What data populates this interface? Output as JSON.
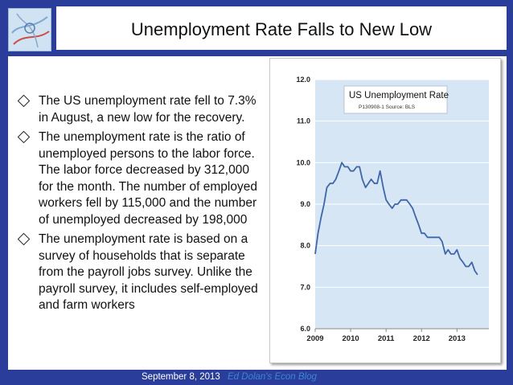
{
  "slide": {
    "title": "Unemployment Rate Falls to New Low",
    "bullets": [
      "The US unemployment rate fell to 7.3% in August, a new low for the recovery.",
      "The unemployment rate is the ratio of unemployed persons to the labor force. The labor force decreased by 312,000 for the month. The number of employed workers fell by 115,000 and the number of unemployed decreased by 198,000",
      "The unemployment rate is based on a survey of households that is separate from the payroll jobs survey. Unlike the payroll survey, it includes self-employed and farm workers"
    ],
    "footer": {
      "date": "September 8, 2013",
      "source": "Ed Dolan's Econ Blog"
    }
  },
  "chart_data": {
    "type": "line",
    "title": "US Unemployment Rate",
    "subtitle": "P130908-1 Source: BLS",
    "xlabel": "",
    "ylabel": "",
    "xlim": [
      2009,
      2013.9
    ],
    "ylim": [
      6.0,
      12.0
    ],
    "x_ticks": [
      "2009",
      "2010",
      "2011",
      "2012",
      "2013"
    ],
    "y_ticks": [
      "6.0",
      "7.0",
      "8.0",
      "9.0",
      "10.0",
      "11.0",
      "12.0"
    ],
    "grid": "horizontal",
    "background_color": "#d6e6f4",
    "line_color": "#3f67a8",
    "series": [
      {
        "x": [
          2009.0,
          2009.08,
          2009.17,
          2009.25,
          2009.33,
          2009.42,
          2009.5,
          2009.58,
          2009.67,
          2009.75,
          2009.83,
          2009.92,
          2010.0,
          2010.08,
          2010.17,
          2010.25,
          2010.33,
          2010.42,
          2010.5,
          2010.58,
          2010.67,
          2010.75,
          2010.83,
          2010.92,
          2011.0,
          2011.08,
          2011.17,
          2011.25,
          2011.33,
          2011.42,
          2011.5,
          2011.58,
          2011.67,
          2011.75,
          2011.83,
          2011.92,
          2012.0,
          2012.08,
          2012.17,
          2012.25,
          2012.33,
          2012.42,
          2012.5,
          2012.58,
          2012.67,
          2012.75,
          2012.83,
          2012.92,
          2013.0,
          2013.08,
          2013.17,
          2013.25,
          2013.33,
          2013.42,
          2013.5,
          2013.58
        ],
        "values": [
          7.8,
          8.3,
          8.7,
          9.0,
          9.4,
          9.5,
          9.5,
          9.6,
          9.8,
          10.0,
          9.9,
          9.9,
          9.8,
          9.8,
          9.9,
          9.9,
          9.6,
          9.4,
          9.5,
          9.6,
          9.5,
          9.5,
          9.8,
          9.4,
          9.1,
          9.0,
          8.9,
          9.0,
          9.0,
          9.1,
          9.1,
          9.1,
          9.0,
          8.9,
          8.7,
          8.5,
          8.3,
          8.3,
          8.2,
          8.2,
          8.2,
          8.2,
          8.2,
          8.1,
          7.8,
          7.9,
          7.8,
          7.8,
          7.9,
          7.7,
          7.6,
          7.5,
          7.5,
          7.6,
          7.4,
          7.3
        ]
      }
    ]
  }
}
